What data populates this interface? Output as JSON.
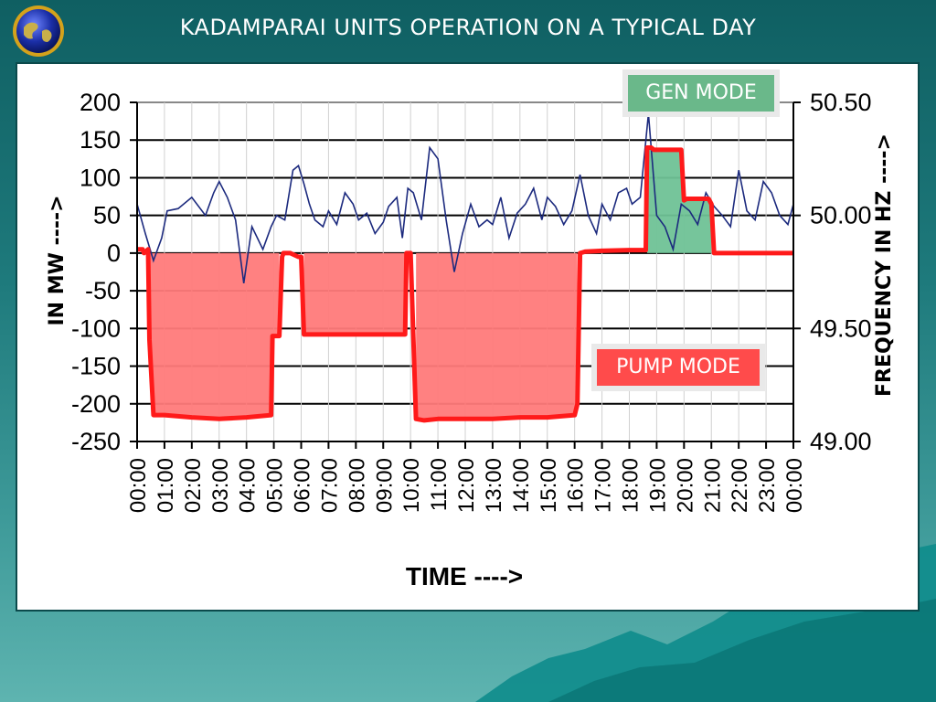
{
  "slide": {
    "title": "KADAMPARAI UNITS OPERATION ON A TYPICAL DAY"
  },
  "colors": {
    "background_top": "#0f5f62",
    "mw_line": "#ff1a1a",
    "mw_fill": "#ff7a7a",
    "gen_fill": "#6fc296",
    "freq_line": "#1c2a7e",
    "gen_label_bg": "#6ab88a",
    "pump_label_bg": "#ff4b4b"
  },
  "labels": {
    "gen_mode": "GEN MODE",
    "pump_mode": "PUMP MODE"
  },
  "chart_data": {
    "type": "line",
    "xlabel": "TIME ---->",
    "ylabel_left": "IN MW ---->",
    "ylabel_right": "FREQUENCY IN HZ ---->",
    "x_ticks": [
      "00:00",
      "01:00",
      "02:00",
      "03:00",
      "04:00",
      "05:00",
      "06:00",
      "07:00",
      "08:00",
      "09:00",
      "10:00",
      "11:00",
      "12:00",
      "13:00",
      "14:00",
      "15:00",
      "16:00",
      "17:00",
      "18:00",
      "19:00",
      "20:00",
      "21:00",
      "22:00",
      "23:00",
      "00:00"
    ],
    "xlim_hours": [
      0,
      24
    ],
    "y_left": {
      "ticks": [
        "200",
        "150",
        "100",
        "50",
        "0",
        "-50",
        "-100",
        "-150",
        "-200",
        "-250"
      ],
      "ylim": [
        -250,
        200
      ]
    },
    "y_right": {
      "ticks": [
        "50.50",
        "50.00",
        "49.50",
        "49.00"
      ],
      "ylim": [
        49.0,
        50.5
      ]
    },
    "grid": "horizontal",
    "series": [
      {
        "axis": "left",
        "hours": [
          0,
          0.2,
          0.25,
          0.4,
          0.45,
          0.6,
          1,
          2,
          3,
          4,
          4.9,
          4.95,
          5.2,
          5.3,
          5.35,
          5.6,
          5.9,
          6.0,
          6.1,
          7,
          8,
          9,
          9.8,
          9.85,
          9.95,
          10.0,
          10.2,
          10.5,
          11,
          12,
          13,
          14,
          15,
          16,
          16.1,
          16.2,
          16.4,
          17,
          18,
          18.6,
          18.65,
          18.8,
          18.9,
          19,
          19.5,
          19.9,
          20.0,
          20.1,
          20.5,
          20.9,
          21.0,
          21.1,
          22,
          23,
          24
        ],
        "mw": [
          5,
          5,
          0,
          5,
          -115,
          -215,
          -215,
          -218,
          -220,
          -218,
          -215,
          -110,
          -110,
          -5,
          0,
          0,
          -5,
          -5,
          -108,
          -108,
          -108,
          -108,
          -108,
          0,
          0,
          0,
          -220,
          -222,
          -220,
          -220,
          -220,
          -218,
          -218,
          -215,
          -200,
          0,
          2,
          3,
          4,
          4,
          140,
          140,
          137,
          137,
          137,
          137,
          70,
          72,
          72,
          72,
          65,
          0,
          0,
          0,
          0
        ]
      },
      {
        "axis": "right",
        "hours": [
          0,
          0.3,
          0.6,
          0.9,
          1.1,
          1.5,
          2,
          2.5,
          2.8,
          3,
          3.3,
          3.6,
          3.9,
          4.2,
          4.4,
          4.6,
          4.9,
          5.1,
          5.4,
          5.7,
          5.9,
          6.1,
          6.3,
          6.5,
          6.8,
          7,
          7.3,
          7.6,
          7.9,
          8.1,
          8.4,
          8.7,
          9,
          9.2,
          9.5,
          9.7,
          9.9,
          10.1,
          10.4,
          10.7,
          11,
          11.3,
          11.6,
          11.9,
          12.2,
          12.5,
          12.8,
          13,
          13.3,
          13.6,
          13.9,
          14.2,
          14.5,
          14.8,
          15,
          15.3,
          15.6,
          15.9,
          16.2,
          16.5,
          16.8,
          17,
          17.3,
          17.6,
          17.9,
          18.1,
          18.4,
          18.7,
          19,
          19.3,
          19.6,
          19.9,
          20.2,
          20.5,
          20.8,
          21.1,
          21.4,
          21.7,
          22,
          22.3,
          22.6,
          22.9,
          23.2,
          23.5,
          23.8,
          24
        ],
        "hz": [
          50.05,
          49.92,
          49.8,
          49.9,
          50.02,
          50.03,
          50.08,
          50.0,
          50.1,
          50.15,
          50.08,
          49.98,
          49.7,
          49.95,
          49.9,
          49.85,
          49.95,
          50.0,
          49.98,
          50.2,
          50.22,
          50.14,
          50.05,
          49.98,
          49.95,
          50.02,
          49.96,
          50.1,
          50.05,
          49.98,
          50.01,
          49.92,
          49.97,
          50.04,
          50.08,
          49.9,
          50.12,
          50.1,
          49.98,
          50.3,
          50.25,
          49.98,
          49.75,
          49.92,
          50.05,
          49.95,
          49.98,
          49.96,
          50.08,
          49.9,
          50.01,
          50.05,
          50.12,
          49.98,
          50.08,
          50.04,
          49.96,
          50.02,
          50.18,
          50.0,
          49.92,
          50.05,
          49.98,
          50.1,
          50.12,
          50.05,
          50.08,
          50.45,
          50.0,
          49.95,
          49.85,
          50.05,
          50.02,
          49.96,
          50.1,
          50.04,
          50.0,
          49.95,
          50.2,
          50.02,
          49.98,
          50.15,
          50.1,
          50.0,
          49.96,
          50.05
        ]
      }
    ]
  }
}
